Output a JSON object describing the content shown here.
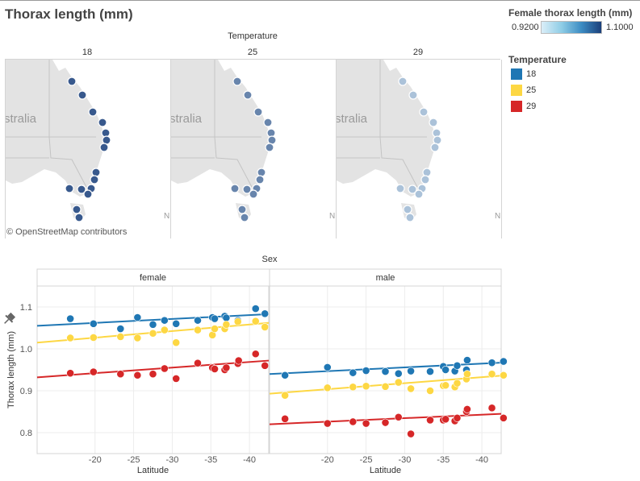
{
  "page_title": "Thorax length (mm)",
  "colors": {
    "t18": "#1f77b4",
    "t25": "#fdd743",
    "t29": "#d62728",
    "map_land": "#e3e3e3",
    "map_border": "#c4c4c4",
    "scale_low": "#dbeef8",
    "scale_high": "#1b3f7a"
  },
  "map_section": {
    "header": "Temperature",
    "panels": [
      {
        "label": "18",
        "text": "stralia",
        "side_letter": "N"
      },
      {
        "label": "25",
        "text": "stralia",
        "side_letter": "N"
      },
      {
        "label": "29",
        "text": "stralia",
        "side_letter": "N"
      }
    ],
    "attribution": "© OpenStreetMap contributors"
  },
  "legends": {
    "gradient": {
      "title": "Female thorax length (mm)",
      "min": "0.9200",
      "max": "1.1000"
    },
    "temperature": {
      "title": "Temperature",
      "items": [
        {
          "label": "18",
          "color": "#1f77b4"
        },
        {
          "label": "25",
          "color": "#fdd743"
        },
        {
          "label": "29",
          "color": "#d62728"
        }
      ]
    }
  },
  "chart_data": [
    {
      "type": "map",
      "facet": "Temperature",
      "color_scale": {
        "title": "Female thorax length (mm)",
        "min": 0.92,
        "max": 1.1
      },
      "panels": [
        "18",
        "25",
        "29"
      ],
      "panel_levels": {
        "18": 0.85,
        "25": 0.6,
        "29": 0.25
      }
    },
    {
      "type": "scatter",
      "title": "Sex",
      "panels": [
        "female",
        "male"
      ],
      "xlabel": "Latitude",
      "ylabel": "Thorax length (mm)",
      "xlim": [
        -12.5,
        -42.5
      ],
      "ylim": [
        0.75,
        1.15
      ],
      "x_ticks": [
        -20,
        -25,
        -30,
        -35,
        -40
      ],
      "y_ticks": [
        0.8,
        0.9,
        1.0,
        1.1
      ],
      "trend": "linear",
      "series": {
        "female": [
          {
            "name": "18",
            "color": "#1f77b4",
            "fit": [
              1.055,
              1.083
            ],
            "x": [
              -16.8,
              -19.8,
              -23.3,
              -25.5,
              -27.5,
              -29.0,
              -30.5,
              -33.3,
              -35.2,
              -35.5,
              -36.8,
              -37.0,
              -38.5,
              -40.8,
              -42.0
            ],
            "y": [
              1.072,
              1.06,
              1.048,
              1.075,
              1.058,
              1.068,
              1.06,
              1.068,
              1.075,
              1.072,
              1.078,
              1.074,
              1.068,
              1.096,
              1.084
            ]
          },
          {
            "name": "25",
            "color": "#fdd743",
            "fit": [
              1.015,
              1.062
            ],
            "x": [
              -16.8,
              -19.8,
              -23.3,
              -25.5,
              -27.5,
              -29.0,
              -30.5,
              -33.3,
              -35.2,
              -35.5,
              -36.8,
              -37.0,
              -38.5,
              -40.8,
              -42.0
            ],
            "y": [
              1.026,
              1.027,
              1.029,
              1.026,
              1.037,
              1.045,
              1.015,
              1.045,
              1.033,
              1.048,
              1.048,
              1.058,
              1.065,
              1.066,
              1.052
            ]
          },
          {
            "name": "29",
            "color": "#d62728",
            "fit": [
              0.932,
              0.972
            ],
            "x": [
              -16.8,
              -19.8,
              -23.3,
              -25.5,
              -27.5,
              -29.0,
              -30.5,
              -33.3,
              -35.2,
              -35.5,
              -36.8,
              -37.0,
              -38.5,
              -38.6,
              -40.8,
              -42.0
            ],
            "y": [
              0.942,
              0.945,
              0.94,
              0.937,
              0.94,
              0.953,
              0.929,
              0.966,
              0.955,
              0.952,
              0.95,
              0.955,
              0.965,
              0.972,
              0.988,
              0.96
            ]
          }
        ],
        "male": [
          {
            "name": "18",
            "color": "#1f77b4",
            "fit": [
              0.94,
              0.967
            ],
            "x": [
              -14.5,
              -20.0,
              -23.3,
              -25.0,
              -27.5,
              -29.2,
              -30.8,
              -33.3,
              -35.0,
              -35.3,
              -36.5,
              -36.8,
              -38.0,
              -38.1,
              -41.3,
              -42.8
            ],
            "y": [
              0.937,
              0.956,
              0.943,
              0.948,
              0.946,
              0.941,
              0.947,
              0.946,
              0.958,
              0.95,
              0.947,
              0.96,
              0.95,
              0.973,
              0.967,
              0.97
            ]
          },
          {
            "name": "25",
            "color": "#fdd743",
            "fit": [
              0.893,
              0.936
            ],
            "x": [
              -14.5,
              -20.0,
              -23.3,
              -25.0,
              -27.5,
              -29.2,
              -30.8,
              -33.3,
              -35.0,
              -35.3,
              -36.5,
              -36.8,
              -38.0,
              -38.1,
              -41.3,
              -42.8
            ],
            "y": [
              0.889,
              0.907,
              0.909,
              0.911,
              0.91,
              0.92,
              0.905,
              0.9,
              0.912,
              0.913,
              0.909,
              0.918,
              0.928,
              0.94,
              0.94,
              0.937
            ]
          },
          {
            "name": "29",
            "color": "#d62728",
            "fit": [
              0.82,
              0.845
            ],
            "x": [
              -14.5,
              -20.0,
              -23.3,
              -25.0,
              -27.5,
              -29.2,
              -30.8,
              -33.3,
              -35.0,
              -35.3,
              -36.5,
              -36.8,
              -38.0,
              -38.1,
              -41.3,
              -42.8
            ],
            "y": [
              0.833,
              0.822,
              0.826,
              0.822,
              0.824,
              0.837,
              0.797,
              0.83,
              0.83,
              0.832,
              0.828,
              0.835,
              0.85,
              0.856,
              0.859,
              0.835
            ]
          }
        ]
      }
    }
  ]
}
